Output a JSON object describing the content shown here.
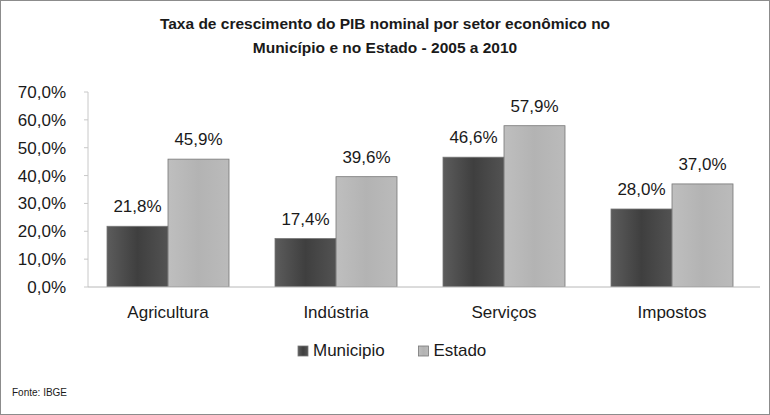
{
  "chart_data": {
    "type": "bar",
    "title": "Taxa de crescimento do PIB nominal por setor econômico no Município e no Estado - 2005 a 2010",
    "source": "Fonte: IBGE",
    "categories": [
      "Agricultura",
      "Indústria",
      "Serviços",
      "Impostos"
    ],
    "series": [
      {
        "name": "Municipio",
        "color": "#3f3f3f",
        "values": [
          21.8,
          17.4,
          46.6,
          28.0
        ],
        "value_labels": [
          "21,8%",
          "17,4%",
          "46,6%",
          "28,0%"
        ]
      },
      {
        "name": "Estado",
        "color": "#b3b3b3",
        "values": [
          45.9,
          39.6,
          57.9,
          37.0
        ],
        "value_labels": [
          "45,9%",
          "39,6%",
          "57,9%",
          "37,0%"
        ]
      }
    ],
    "ylim": [
      0,
      70
    ],
    "yticks": [
      {
        "value": 0,
        "label": "0,0%"
      },
      {
        "value": 10,
        "label": "10,0%"
      },
      {
        "value": 20,
        "label": "20,0%"
      },
      {
        "value": 30,
        "label": "30,0%"
      },
      {
        "value": 40,
        "label": "40,0%"
      },
      {
        "value": 50,
        "label": "50,0%"
      },
      {
        "value": 60,
        "label": "60,0%"
      },
      {
        "value": 70,
        "label": "70,0%"
      }
    ],
    "grid": false,
    "legend": "bottom",
    "data_labels": true
  }
}
